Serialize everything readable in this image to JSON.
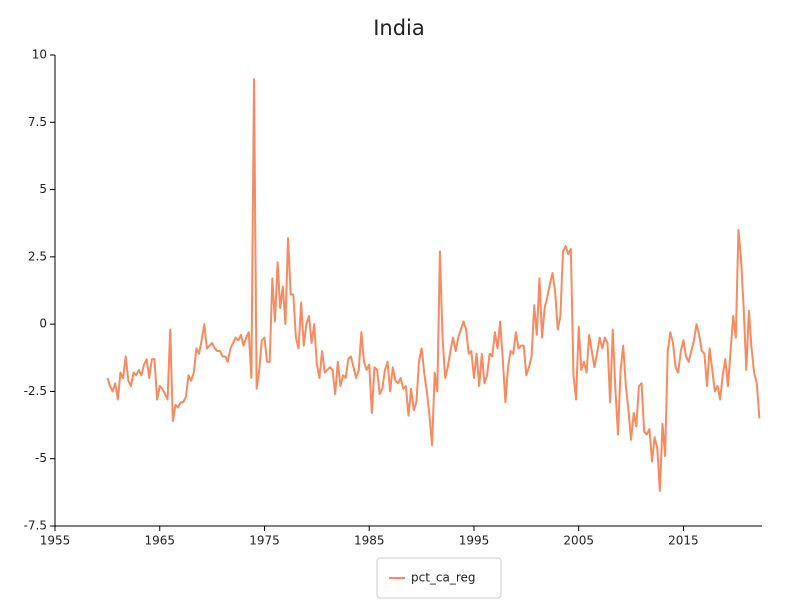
{
  "chart_data": {
    "type": "line",
    "title": "India",
    "x": [
      1960,
      1960.25,
      1960.5,
      1960.75,
      1961,
      1961.25,
      1961.5,
      1961.75,
      1962,
      1962.25,
      1962.5,
      1962.75,
      1963,
      1963.25,
      1963.5,
      1963.75,
      1964,
      1964.25,
      1964.5,
      1964.75,
      1965,
      1965.25,
      1965.5,
      1965.75,
      1966,
      1966.25,
      1966.5,
      1966.75,
      1967,
      1967.25,
      1967.5,
      1967.75,
      1968,
      1968.25,
      1968.5,
      1968.75,
      1969,
      1969.25,
      1969.5,
      1969.75,
      1970,
      1970.25,
      1970.5,
      1970.75,
      1971,
      1971.25,
      1971.5,
      1971.75,
      1972,
      1972.25,
      1972.5,
      1972.75,
      1973,
      1973.25,
      1973.5,
      1973.75,
      1974,
      1974.25,
      1974.5,
      1974.75,
      1975,
      1975.25,
      1975.5,
      1975.75,
      1976,
      1976.25,
      1976.5,
      1976.75,
      1977,
      1977.25,
      1977.5,
      1977.75,
      1978,
      1978.25,
      1978.5,
      1978.75,
      1979,
      1979.25,
      1979.5,
      1979.75,
      1980,
      1980.25,
      1980.5,
      1980.75,
      1981,
      1981.25,
      1981.5,
      1981.75,
      1982,
      1982.25,
      1982.5,
      1982.75,
      1983,
      1983.25,
      1983.5,
      1983.75,
      1984,
      1984.25,
      1984.5,
      1984.75,
      1985,
      1985.25,
      1985.5,
      1985.75,
      1986,
      1986.25,
      1986.5,
      1986.75,
      1987,
      1987.25,
      1987.5,
      1987.75,
      1988,
      1988.25,
      1988.5,
      1988.75,
      1989,
      1989.25,
      1989.5,
      1989.75,
      1990,
      1990.25,
      1990.5,
      1990.75,
      1991,
      1991.25,
      1991.5,
      1991.75,
      1992,
      1992.25,
      1992.5,
      1992.75,
      1993,
      1993.25,
      1993.5,
      1993.75,
      1994,
      1994.25,
      1994.5,
      1994.75,
      1995,
      1995.25,
      1995.5,
      1995.75,
      1996,
      1996.25,
      1996.5,
      1996.75,
      1997,
      1997.25,
      1997.5,
      1997.75,
      1998,
      1998.25,
      1998.5,
      1998.75,
      1999,
      1999.25,
      1999.5,
      1999.75,
      2000,
      2000.25,
      2000.5,
      2000.75,
      2001,
      2001.25,
      2001.5,
      2001.75,
      2002,
      2002.25,
      2002.5,
      2002.75,
      2003,
      2003.25,
      2003.5,
      2003.75,
      2004,
      2004.25,
      2004.5,
      2004.75,
      2005,
      2005.25,
      2005.5,
      2005.75,
      2006,
      2006.25,
      2006.5,
      2006.75,
      2007,
      2007.25,
      2007.5,
      2007.75,
      2008,
      2008.25,
      2008.5,
      2008.75,
      2009,
      2009.25,
      2009.5,
      2009.75,
      2010,
      2010.25,
      2010.5,
      2010.75,
      2011,
      2011.25,
      2011.5,
      2011.75,
      2012,
      2012.25,
      2012.5,
      2012.75,
      2013,
      2013.25,
      2013.5,
      2013.75,
      2014,
      2014.25,
      2014.5,
      2014.75,
      2015,
      2015.25,
      2015.5,
      2015.75,
      2016,
      2016.25,
      2016.5,
      2016.75,
      2017,
      2017.25,
      2017.5,
      2017.75,
      2018,
      2018.25,
      2018.5,
      2018.75,
      2019,
      2019.25,
      2019.5,
      2019.75,
      2020,
      2020.25,
      2020.5,
      2020.75,
      2021,
      2021.25,
      2021.5,
      2021.75,
      2022,
      2022.25
    ],
    "series": [
      {
        "name": "pct_ca_reg",
        "color": "#f58b5f",
        "values": [
          -2.0,
          -2.3,
          -2.5,
          -2.2,
          -2.8,
          -1.8,
          -2.0,
          -1.2,
          -2.1,
          -2.3,
          -1.8,
          -1.9,
          -1.7,
          -1.9,
          -1.5,
          -1.3,
          -2.0,
          -1.3,
          -1.3,
          -2.8,
          -2.3,
          -2.4,
          -2.6,
          -2.8,
          -0.2,
          -3.6,
          -3.0,
          -3.1,
          -2.9,
          -2.9,
          -2.7,
          -1.9,
          -2.1,
          -1.8,
          -0.9,
          -1.1,
          -0.6,
          0.0,
          -0.9,
          -0.8,
          -0.7,
          -0.9,
          -1.0,
          -1.0,
          -1.2,
          -1.2,
          -1.4,
          -0.9,
          -0.7,
          -0.5,
          -0.6,
          -0.4,
          -0.8,
          -0.5,
          -0.3,
          -2.0,
          9.1,
          -2.4,
          -1.7,
          -0.6,
          -0.5,
          -1.4,
          -1.4,
          1.7,
          0.1,
          2.3,
          0.6,
          1.4,
          0.0,
          3.2,
          1.1,
          1.1,
          -0.5,
          -0.9,
          0.8,
          -0.8,
          0.0,
          0.3,
          -0.7,
          0.0,
          -1.5,
          -2.0,
          -1.0,
          -1.8,
          -1.7,
          -1.6,
          -1.7,
          -2.6,
          -1.4,
          -2.3,
          -1.9,
          -2.0,
          -1.3,
          -1.2,
          -1.6,
          -2.0,
          -1.7,
          -0.3,
          -1.4,
          -1.7,
          -1.5,
          -3.3,
          -1.6,
          -1.7,
          -2.6,
          -2.4,
          -1.7,
          -1.4,
          -2.5,
          -1.6,
          -2.1,
          -2.2,
          -2.0,
          -2.4,
          -2.3,
          -3.4,
          -2.4,
          -3.2,
          -2.9,
          -1.4,
          -0.9,
          -1.8,
          -2.5,
          -3.4,
          -4.5,
          -1.8,
          -2.5,
          2.7,
          -0.5,
          -2.0,
          -1.6,
          -1.0,
          -0.5,
          -1.0,
          -0.5,
          -0.2,
          0.1,
          -0.2,
          -1.1,
          -1.0,
          -2.0,
          -1.1,
          -2.3,
          -1.1,
          -2.2,
          -1.9,
          -1.1,
          -1.2,
          -0.3,
          -0.9,
          0.1,
          -1.3,
          -2.9,
          -1.6,
          -1.0,
          -1.1,
          -0.3,
          -0.9,
          -0.8,
          -0.8,
          -1.9,
          -1.6,
          -1.2,
          0.7,
          -0.4,
          1.7,
          -0.5,
          0.6,
          1.0,
          1.5,
          1.9,
          1.2,
          -0.2,
          0.3,
          2.7,
          2.9,
          2.6,
          2.8,
          -1.9,
          -2.8,
          -0.1,
          -1.7,
          -1.4,
          -1.8,
          -0.4,
          -1.0,
          -1.6,
          -1.1,
          -0.5,
          -0.9,
          -0.5,
          -0.7,
          -2.9,
          -0.2,
          -2.4,
          -4.1,
          -1.7,
          -0.8,
          -2.3,
          -3.2,
          -4.3,
          -3.3,
          -3.8,
          -2.3,
          -2.2,
          -4.0,
          -4.1,
          -3.9,
          -5.1,
          -4.2,
          -4.6,
          -6.2,
          -3.7,
          -4.9,
          -1.0,
          -0.3,
          -0.7,
          -1.6,
          -1.8,
          -1.0,
          -0.6,
          -1.2,
          -1.4,
          -1.0,
          -0.6,
          0.0,
          -0.4,
          -1.0,
          -1.1,
          -2.3,
          -0.9,
          -1.7,
          -2.5,
          -2.3,
          -2.8,
          -1.9,
          -1.3,
          -2.3,
          -1.0,
          0.3,
          -0.5,
          3.5,
          2.4,
          0.6,
          -1.7,
          0.5,
          -0.9,
          -1.8,
          -2.2,
          -3.5
        ]
      }
    ],
    "xlim": [
      1955,
      2022.5
    ],
    "xticks": [
      1955,
      1965,
      1975,
      1985,
      1995,
      2005,
      2015
    ],
    "ylim": [
      -7.5,
      10
    ],
    "yticks": [
      -7.5,
      -5,
      -2.5,
      0,
      2.5,
      5,
      7.5,
      10
    ],
    "grid": false,
    "legend": "bottom"
  }
}
